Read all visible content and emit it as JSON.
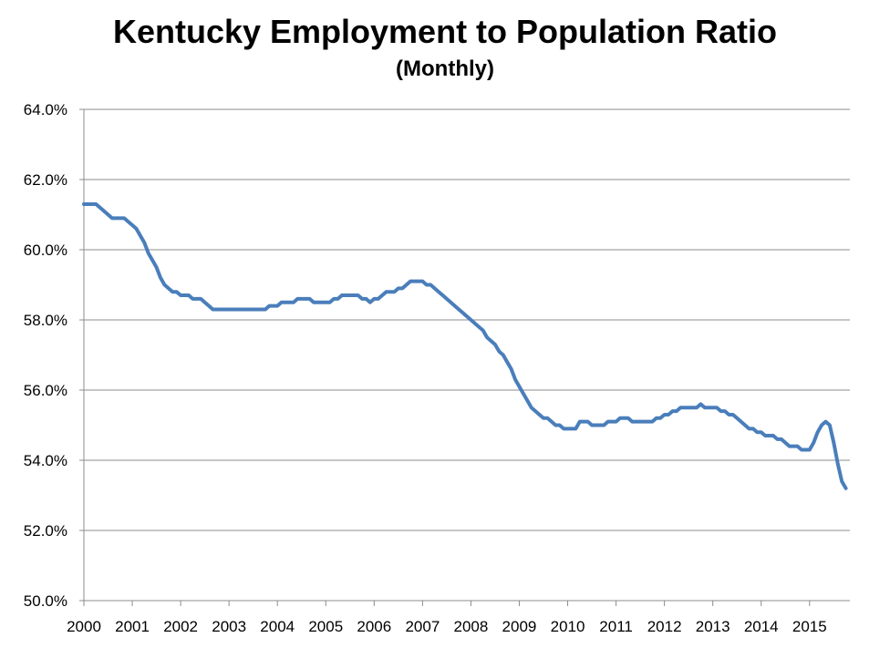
{
  "chart_data": {
    "type": "line",
    "title": "Kentucky Employment to Population Ratio",
    "subtitle": "(Monthly)",
    "xlabel": "",
    "ylabel": "",
    "ylim": [
      50.0,
      64.0
    ],
    "y_ticks": [
      "50.0%",
      "52.0%",
      "54.0%",
      "56.0%",
      "58.0%",
      "60.0%",
      "62.0%",
      "64.0%"
    ],
    "x_ticks": [
      "2000",
      "2001",
      "2002",
      "2003",
      "2004",
      "2005",
      "2006",
      "2007",
      "2008",
      "2009",
      "2010",
      "2011",
      "2012",
      "2013",
      "2014",
      "2015"
    ],
    "grid": true,
    "legend": "none",
    "line_color": "#4a7ebb",
    "series": [
      {
        "x_start": "2000-01",
        "frequency": "monthly",
        "values": [
          61.3,
          61.3,
          61.3,
          61.3,
          61.2,
          61.1,
          61.0,
          60.9,
          60.9,
          60.9,
          60.9,
          60.8,
          60.7,
          60.6,
          60.4,
          60.2,
          59.9,
          59.7,
          59.5,
          59.2,
          59.0,
          58.9,
          58.8,
          58.8,
          58.7,
          58.7,
          58.7,
          58.6,
          58.6,
          58.6,
          58.5,
          58.4,
          58.3,
          58.3,
          58.3,
          58.3,
          58.3,
          58.3,
          58.3,
          58.3,
          58.3,
          58.3,
          58.3,
          58.3,
          58.3,
          58.3,
          58.4,
          58.4,
          58.4,
          58.5,
          58.5,
          58.5,
          58.5,
          58.6,
          58.6,
          58.6,
          58.6,
          58.5,
          58.5,
          58.5,
          58.5,
          58.5,
          58.6,
          58.6,
          58.7,
          58.7,
          58.7,
          58.7,
          58.7,
          58.6,
          58.6,
          58.5,
          58.6,
          58.6,
          58.7,
          58.8,
          58.8,
          58.8,
          58.9,
          58.9,
          59.0,
          59.1,
          59.1,
          59.1,
          59.1,
          59.0,
          59.0,
          58.9,
          58.8,
          58.7,
          58.6,
          58.5,
          58.4,
          58.3,
          58.2,
          58.1,
          58.0,
          57.9,
          57.8,
          57.7,
          57.5,
          57.4,
          57.3,
          57.1,
          57.0,
          56.8,
          56.6,
          56.3,
          56.1,
          55.9,
          55.7,
          55.5,
          55.4,
          55.3,
          55.2,
          55.2,
          55.1,
          55.0,
          55.0,
          54.9,
          54.9,
          54.9,
          54.9,
          55.1,
          55.1,
          55.1,
          55.0,
          55.0,
          55.0,
          55.0,
          55.1,
          55.1,
          55.1,
          55.2,
          55.2,
          55.2,
          55.1,
          55.1,
          55.1,
          55.1,
          55.1,
          55.1,
          55.2,
          55.2,
          55.3,
          55.3,
          55.4,
          55.4,
          55.5,
          55.5,
          55.5,
          55.5,
          55.5,
          55.6,
          55.5,
          55.5,
          55.5,
          55.5,
          55.4,
          55.4,
          55.3,
          55.3,
          55.2,
          55.1,
          55.0,
          54.9,
          54.9,
          54.8,
          54.8,
          54.7,
          54.7,
          54.7,
          54.6,
          54.6,
          54.5,
          54.4,
          54.4,
          54.4,
          54.3,
          54.3,
          54.3,
          54.5,
          54.8,
          55.0,
          55.1,
          55.0,
          54.5,
          53.9,
          53.4,
          53.2
        ]
      }
    ]
  }
}
